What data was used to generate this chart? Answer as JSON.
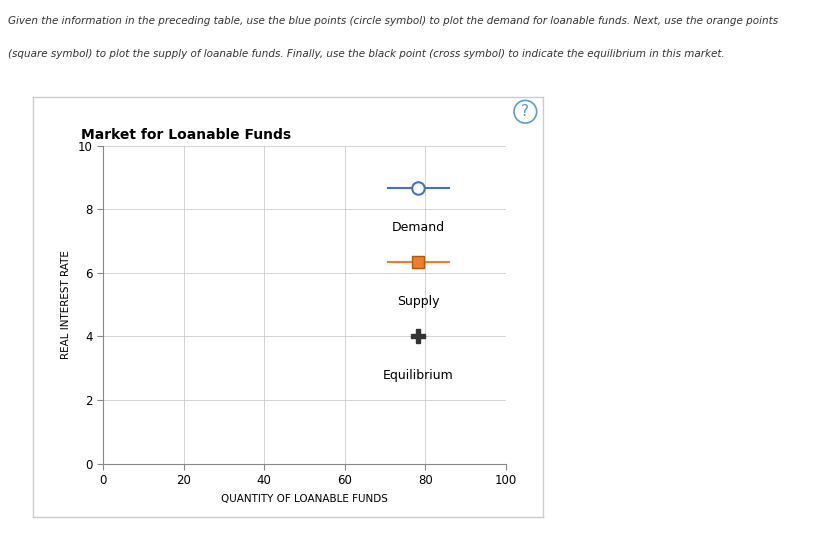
{
  "title": "Market for Loanable Funds",
  "xlabel": "QUANTITY OF LOANABLE FUNDS",
  "ylabel": "REAL INTEREST RATE",
  "xlim": [
    0,
    100
  ],
  "ylim": [
    0,
    10
  ],
  "xticks": [
    0,
    20,
    40,
    60,
    80,
    100
  ],
  "yticks": [
    0,
    2,
    4,
    6,
    8,
    10
  ],
  "legend_labels": [
    "Demand",
    "Supply",
    "Equilibrium"
  ],
  "demand_color": "#4472c4",
  "supply_color": "#ed7d31",
  "equilibrium_color": "#333333",
  "grid_color": "#cccccc",
  "plot_bg": "#ffffff",
  "panel_bg": "#ffffff",
  "outer_bg": "#ffffff",
  "border_color": "#cccccc",
  "title_fontsize": 10,
  "label_fontsize": 7.5,
  "tick_fontsize": 8.5,
  "legend_fontsize": 9,
  "desc_text_line1": "Given the information in the preceding table, use the blue points (circle symbol) to plot the demand for loanable funds. Next, use the orange points",
  "desc_text_line2": "(square symbol) to plot the supply of loanable funds. Finally, use the black point (cross symbol) to indicate the equilibrium in this market.",
  "fig_width": 8.23,
  "fig_height": 5.39
}
